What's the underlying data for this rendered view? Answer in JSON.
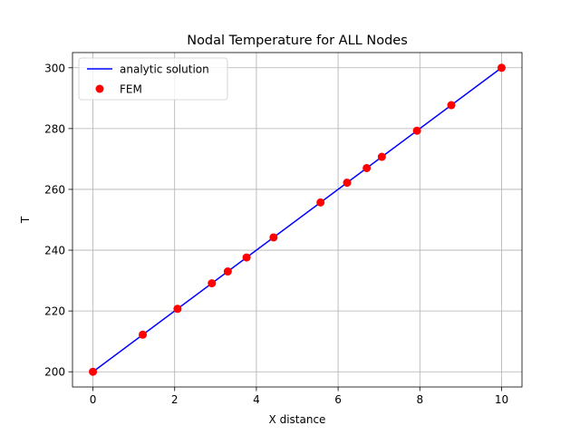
{
  "chart_data": {
    "type": "line",
    "title": "Nodal Temperature for ALL Nodes",
    "xlabel": "X distance",
    "ylabel": "T",
    "xlim": [
      -0.5,
      10.5
    ],
    "ylim": [
      195,
      305
    ],
    "xticks": [
      0,
      2,
      4,
      6,
      8,
      10
    ],
    "yticks": [
      200,
      220,
      240,
      260,
      280,
      300
    ],
    "grid": true,
    "legend_position": "top-left",
    "series": [
      {
        "name": "analytic solution",
        "kind": "line",
        "color": "#0000ff",
        "x": [
          0,
          10
        ],
        "y": [
          200,
          300
        ]
      },
      {
        "name": "FEM",
        "kind": "markers",
        "color": "#ff0000",
        "x": [
          0,
          1.22,
          2.07,
          2.91,
          3.3,
          3.76,
          4.42,
          5.57,
          6.22,
          6.7,
          7.07,
          7.93,
          8.77,
          10
        ],
        "y": [
          200,
          212.2,
          220.7,
          229.1,
          233.0,
          237.6,
          244.2,
          255.7,
          262.2,
          267.0,
          270.7,
          279.3,
          287.7,
          300
        ]
      }
    ]
  }
}
